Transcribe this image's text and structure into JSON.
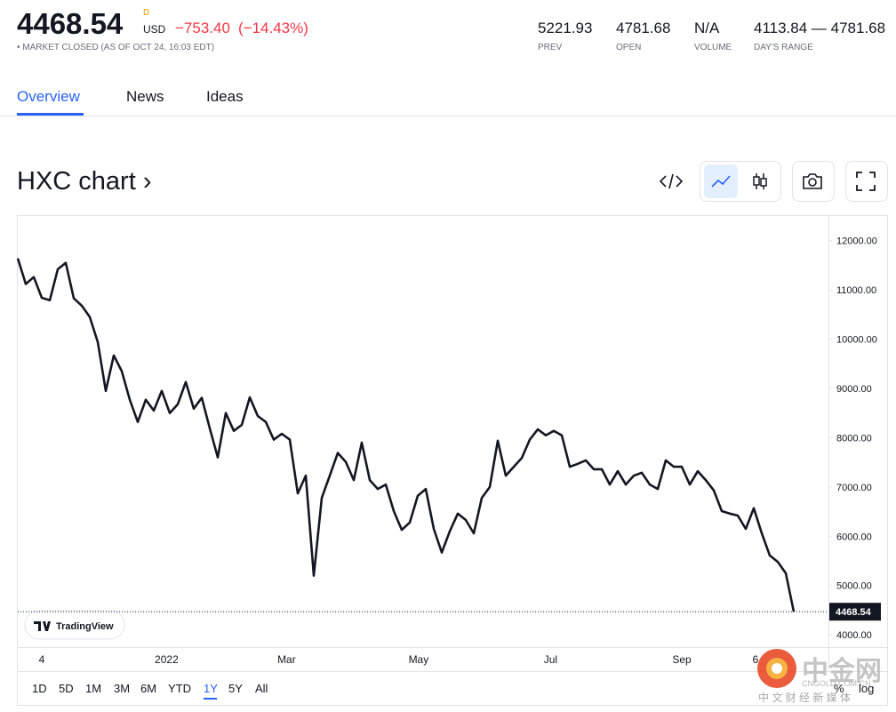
{
  "header": {
    "price": "4468.54",
    "price_flag": "D",
    "currency": "USD",
    "change": "−753.40",
    "change_pct": "(−14.43%)",
    "status": "• MARKET CLOSED (AS OF OCT 24, 16:03 EDT)",
    "stats": [
      {
        "value": "5221.93",
        "label": "PREV"
      },
      {
        "value": "4781.68",
        "label": "OPEN"
      },
      {
        "value": "N/A",
        "label": "VOLUME"
      },
      {
        "value": "4113.84 — 4781.68",
        "label": "DAY'S RANGE"
      }
    ]
  },
  "tabs": [
    "Overview",
    "News",
    "Ideas"
  ],
  "chart_heading": "HXC chart ›",
  "chart_data": {
    "type": "line",
    "color": "#131722",
    "grid": false,
    "values": [
      11640,
      11120,
      11260,
      10840,
      10790,
      11420,
      11550,
      10830,
      10680,
      10450,
      9940,
      8950,
      9670,
      9350,
      8770,
      8320,
      8770,
      8550,
      8950,
      8500,
      8680,
      9130,
      8590,
      8810,
      8190,
      7600,
      8500,
      8140,
      8260,
      8820,
      8440,
      8320,
      7960,
      8080,
      7960,
      6870,
      7230,
      5200,
      6780,
      7230,
      7690,
      7510,
      7140,
      7900,
      7140,
      6960,
      7050,
      6510,
      6130,
      6280,
      6820,
      6960,
      6150,
      5670,
      6100,
      6460,
      6330,
      6060,
      6780,
      7000,
      7940,
      7230,
      7410,
      7590,
      7960,
      8170,
      8050,
      8140,
      8050,
      7410,
      7470,
      7540,
      7360,
      7360,
      7050,
      7320,
      7050,
      7230,
      7290,
      7050,
      6960,
      7540,
      7410,
      7410,
      7050,
      7320,
      7140,
      6930,
      6510,
      6460,
      6420,
      6150,
      6570,
      6060,
      5610,
      5480,
      5250,
      4468.54
    ],
    "xlim": [
      0,
      97
    ],
    "xticks": [
      {
        "value": 3,
        "label": "4"
      },
      {
        "value": 18.6,
        "label": "2022"
      },
      {
        "value": 33.6,
        "label": "Mar"
      },
      {
        "value": 50.1,
        "label": "May"
      },
      {
        "value": 66.6,
        "label": "Jul"
      },
      {
        "value": 83,
        "label": "Sep"
      },
      {
        "value": 92.2,
        "label": "6"
      }
    ],
    "ylim": [
      3750,
      12500
    ],
    "yticks": [
      {
        "value": 4000,
        "label": "4000.00"
      },
      {
        "value": 5000,
        "label": "5000.00"
      },
      {
        "value": 6000,
        "label": "6000.00"
      },
      {
        "value": 7000,
        "label": "7000.00"
      },
      {
        "value": 8000,
        "label": "8000.00"
      },
      {
        "value": 9000,
        "label": "9000.00"
      },
      {
        "value": 10000,
        "label": "10000.00"
      },
      {
        "value": 11000,
        "label": "11000.00"
      },
      {
        "value": 12000,
        "label": "12000.00"
      }
    ],
    "brand": "TradingView"
  },
  "ranges": [
    "1D",
    "5D",
    "1M",
    "3M",
    "6M",
    "YTD",
    "1Y",
    "5Y",
    "All"
  ],
  "active_range": "1Y",
  "scale_options": [
    "%",
    "log"
  ],
  "watermark": {
    "name": "中金网",
    "site": "CNGOLD.COM.CN",
    "slogan": "中 文 财 经 新 媒 体"
  }
}
